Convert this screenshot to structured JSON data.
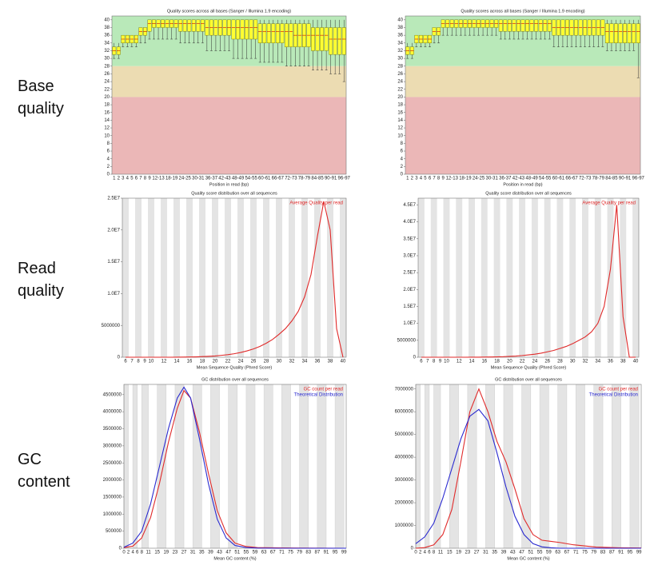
{
  "row_labels": [
    "Base quality",
    "Read quality",
    "GC content"
  ],
  "chart_data": [
    {
      "type": "box",
      "title": "Quality scores across all bases (Sanger / Illumina 1.9 encoding)",
      "x_label": "Position in read (bp)",
      "categories": [
        "1",
        "2",
        "3",
        "4",
        "5",
        "6",
        "7",
        "8",
        "9",
        null,
        "12-13",
        null,
        null,
        "18-19",
        null,
        null,
        "24-25",
        null,
        null,
        "30-31",
        null,
        null,
        "36-37",
        null,
        null,
        "42-43",
        null,
        null,
        "48-49",
        null,
        null,
        "54-55",
        null,
        null,
        "60-61",
        null,
        null,
        "66-67",
        null,
        null,
        "72-73",
        null,
        null,
        "78-79",
        null,
        null,
        "84-85",
        null,
        null,
        "90-91",
        null,
        null,
        "96-97"
      ],
      "lower": [
        30,
        30,
        33,
        33,
        33,
        33,
        34,
        34,
        35,
        35,
        35,
        35,
        35,
        35,
        35,
        34,
        34,
        34,
        34,
        34,
        34,
        32,
        32,
        32,
        32,
        32,
        32,
        30,
        30,
        30,
        30,
        30,
        30,
        29,
        29,
        29,
        29,
        29,
        29,
        28,
        28,
        28,
        28,
        28,
        28,
        27,
        27,
        27,
        27,
        26,
        26,
        26,
        24
      ],
      "q1": [
        31,
        31,
        34,
        34,
        34,
        34,
        36,
        36,
        37,
        38,
        38,
        38,
        38,
        38,
        38,
        37,
        37,
        37,
        37,
        37,
        37,
        36,
        36,
        36,
        36,
        36,
        36,
        35,
        35,
        35,
        35,
        35,
        35,
        34,
        34,
        34,
        34,
        34,
        34,
        33,
        33,
        33,
        33,
        33,
        33,
        32,
        32,
        32,
        32,
        31,
        31,
        31,
        31
      ],
      "median": [
        32,
        32,
        35,
        35,
        35,
        35,
        37,
        37,
        39,
        39,
        39,
        39,
        39,
        39,
        39,
        39,
        39,
        39,
        39,
        39,
        39,
        38,
        38,
        38,
        38,
        38,
        38,
        38,
        38,
        38,
        38,
        38,
        38,
        37,
        37,
        37,
        37,
        37,
        37,
        37,
        37,
        36,
        36,
        36,
        36,
        36,
        36,
        36,
        36,
        35,
        35,
        35,
        35
      ],
      "q3": [
        33,
        33,
        36,
        36,
        36,
        36,
        38,
        38,
        40,
        40,
        40,
        40,
        40,
        40,
        40,
        40,
        40,
        40,
        40,
        40,
        40,
        40,
        40,
        40,
        40,
        40,
        40,
        40,
        40,
        40,
        40,
        40,
        40,
        39,
        39,
        39,
        39,
        39,
        39,
        39,
        39,
        39,
        39,
        39,
        39,
        38,
        38,
        38,
        38,
        38,
        38,
        38,
        38
      ],
      "upper": [
        34,
        34,
        36,
        36,
        36,
        36,
        38,
        38,
        40,
        40,
        40,
        40,
        40,
        40,
        40,
        40,
        40,
        40,
        40,
        40,
        40,
        40,
        40,
        40,
        40,
        40,
        40,
        40,
        40,
        40,
        40,
        40,
        40,
        40,
        40,
        40,
        40,
        40,
        40,
        40,
        40,
        40,
        40,
        40,
        40,
        40,
        40,
        40,
        40,
        40,
        40,
        40,
        40
      ],
      "color": "#ffff33",
      "bands": [
        {
          "from": 28,
          "to": 41,
          "color": "#b9e9b9"
        },
        {
          "from": 20,
          "to": 28,
          "color": "#ecdcb2"
        },
        {
          "from": 0,
          "to": 20,
          "color": "#ebb7b7"
        }
      ],
      "ylim": [
        0,
        41
      ],
      "yticks": [
        0,
        2,
        4,
        6,
        8,
        10,
        12,
        14,
        16,
        18,
        20,
        22,
        24,
        26,
        28,
        30,
        32,
        34,
        36,
        38,
        40
      ]
    },
    {
      "type": "box",
      "title": "Quality scores across all bases (Sanger / Illumina 1.9 encoding)",
      "x_label": "Position in read (bp)",
      "categories": [
        "1",
        "2",
        "3",
        "4",
        "5",
        "6",
        "7",
        "8",
        "9",
        null,
        "12-13",
        null,
        null,
        "18-19",
        null,
        null,
        "24-25",
        null,
        null,
        "30-31",
        null,
        null,
        "36-37",
        null,
        null,
        "42-43",
        null,
        null,
        "48-49",
        null,
        null,
        "54-55",
        null,
        null,
        "60-61",
        null,
        null,
        "66-67",
        null,
        null,
        "72-73",
        null,
        null,
        "78-79",
        null,
        null,
        "84-85",
        null,
        null,
        "90-91",
        null,
        null,
        "96-97"
      ],
      "lower": [
        30,
        30,
        33,
        33,
        33,
        33,
        34,
        34,
        36,
        36,
        36,
        36,
        36,
        36,
        36,
        36,
        36,
        36,
        36,
        36,
        36,
        35,
        35,
        35,
        35,
        35,
        35,
        35,
        35,
        35,
        35,
        35,
        35,
        33,
        33,
        33,
        33,
        33,
        33,
        33,
        33,
        33,
        33,
        33,
        33,
        32,
        32,
        32,
        32,
        32,
        32,
        32,
        25
      ],
      "q1": [
        31,
        31,
        34,
        34,
        34,
        34,
        36,
        36,
        38,
        38,
        38,
        38,
        38,
        38,
        38,
        38,
        38,
        38,
        38,
        38,
        38,
        37,
        37,
        37,
        37,
        37,
        37,
        37,
        37,
        37,
        37,
        37,
        37,
        36,
        36,
        36,
        36,
        36,
        36,
        36,
        36,
        36,
        36,
        36,
        36,
        34,
        34,
        34,
        34,
        34,
        34,
        34,
        34
      ],
      "median": [
        32,
        32,
        35,
        35,
        35,
        35,
        37,
        37,
        39,
        39,
        39,
        39,
        39,
        39,
        39,
        39,
        39,
        39,
        39,
        39,
        39,
        39,
        39,
        39,
        39,
        39,
        39,
        39,
        39,
        39,
        39,
        39,
        39,
        38,
        38,
        38,
        38,
        38,
        38,
        38,
        38,
        38,
        38,
        38,
        38,
        37,
        37,
        37,
        37,
        37,
        37,
        37,
        37
      ],
      "q3": [
        33,
        33,
        36,
        36,
        36,
        36,
        38,
        38,
        40,
        40,
        40,
        40,
        40,
        40,
        40,
        40,
        40,
        40,
        40,
        40,
        40,
        40,
        40,
        40,
        40,
        40,
        40,
        40,
        40,
        40,
        40,
        40,
        40,
        40,
        40,
        40,
        40,
        40,
        40,
        40,
        40,
        40,
        40,
        40,
        40,
        39,
        39,
        39,
        39,
        39,
        39,
        39,
        39
      ],
      "upper": [
        34,
        34,
        36,
        36,
        36,
        36,
        38,
        38,
        40,
        40,
        40,
        40,
        40,
        40,
        40,
        40,
        40,
        40,
        40,
        40,
        40,
        40,
        40,
        40,
        40,
        40,
        40,
        40,
        40,
        40,
        40,
        40,
        40,
        40,
        40,
        40,
        40,
        40,
        40,
        40,
        40,
        40,
        40,
        40,
        40,
        40,
        40,
        40,
        40,
        40,
        40,
        40,
        40
      ],
      "color": "#ffff33",
      "bands": [
        {
          "from": 28,
          "to": 41,
          "color": "#b9e9b9"
        },
        {
          "from": 20,
          "to": 28,
          "color": "#ecdcb2"
        },
        {
          "from": 0,
          "to": 20,
          "color": "#ebb7b7"
        }
      ],
      "ylim": [
        0,
        41
      ],
      "yticks": [
        0,
        2,
        4,
        6,
        8,
        10,
        12,
        14,
        16,
        18,
        20,
        22,
        24,
        26,
        28,
        30,
        32,
        34,
        36,
        38,
        40
      ]
    },
    {
      "type": "line",
      "title": "Quality score distribution over all sequences",
      "x_label": "Mean Sequence Quality (Phred Score)",
      "categories": [
        "6",
        "7",
        "8",
        "9",
        "10",
        null,
        "12",
        null,
        "14",
        null,
        "16",
        null,
        "18",
        null,
        "20",
        null,
        "22",
        null,
        "24",
        null,
        "26",
        null,
        "28",
        null,
        "30",
        null,
        "32",
        null,
        "34",
        null,
        "36",
        null,
        "38",
        null,
        "40"
      ],
      "series": [
        {
          "name": "Average Quality per read",
          "color": "#e02a2a",
          "values": [
            0,
            0,
            0,
            0,
            0,
            0,
            0,
            0,
            10000,
            20000,
            40000,
            60000,
            100000,
            150000,
            200000,
            300000,
            400000,
            550000,
            750000,
            1000000,
            1300000,
            1700000,
            2200000,
            2800000,
            3600000,
            4500000,
            5700000,
            7200000,
            9500000,
            13000000,
            19000000,
            24500000,
            20000000,
            4500000,
            0
          ]
        }
      ],
      "stripes": true,
      "ylim": [
        0,
        25000000
      ],
      "yticks": [
        0,
        5000000,
        {
          "value": 10000000,
          "label": "1.0E7"
        },
        {
          "value": 15000000,
          "label": "1.5E7"
        },
        {
          "value": 20000000,
          "label": "2.0E7"
        },
        {
          "value": 25000000,
          "label": "2.5E7"
        }
      ]
    },
    {
      "type": "line",
      "title": "Quality score distribution over all sequences",
      "x_label": "Mean Sequence Quality (Phred Score)",
      "categories": [
        "6",
        "7",
        "8",
        "9",
        "10",
        null,
        "12",
        null,
        "14",
        null,
        "16",
        null,
        "18",
        null,
        "20",
        null,
        "22",
        null,
        "24",
        null,
        "26",
        null,
        "28",
        null,
        "30",
        null,
        "32",
        null,
        "34",
        null,
        "36",
        null,
        "38",
        null,
        "40"
      ],
      "series": [
        {
          "name": "Average Quality per read",
          "color": "#e02a2a",
          "values": [
            0,
            0,
            0,
            0,
            0,
            0,
            0,
            0,
            10000,
            20000,
            40000,
            70000,
            100000,
            150000,
            250000,
            350000,
            500000,
            700000,
            900000,
            1200000,
            1600000,
            2000000,
            2600000,
            3200000,
            4000000,
            5000000,
            6000000,
            7500000,
            10000000,
            15000000,
            26000000,
            45000000,
            12000000,
            0,
            0
          ]
        }
      ],
      "stripes": true,
      "ylim": [
        0,
        47000000
      ],
      "yticks": [
        0,
        5000000,
        {
          "value": 10000000,
          "label": "1.0E7"
        },
        {
          "value": 15000000,
          "label": "1.5E7"
        },
        {
          "value": 20000000,
          "label": "2.0E7"
        },
        {
          "value": 25000000,
          "label": "2.5E7"
        },
        {
          "value": 30000000,
          "label": "3.0E7"
        },
        {
          "value": 35000000,
          "label": "3.5E7"
        },
        {
          "value": 40000000,
          "label": "4.0E7"
        },
        {
          "value": 45000000,
          "label": "4.5E7"
        }
      ]
    },
    {
      "type": "line",
      "title": "GC distribution over all sequences",
      "x_label": "Mean GC content (%)",
      "x": [
        0,
        4,
        8,
        12,
        16,
        20,
        24,
        27,
        30,
        34,
        38,
        42,
        46,
        50,
        55,
        60,
        70,
        80,
        100
      ],
      "series": [
        {
          "name": "GC count per read",
          "color": "#e02a2a",
          "values": [
            20000,
            60000,
            300000,
            900000,
            1900000,
            3100000,
            4100000,
            4620000,
            4400000,
            3400000,
            2200000,
            1100000,
            450000,
            150000,
            50000,
            20000,
            10000,
            5000,
            0
          ]
        },
        {
          "name": "Theoretical Distribution",
          "color": "#2a2ad0",
          "values": [
            30000,
            150000,
            500000,
            1300000,
            2400000,
            3500000,
            4400000,
            4720000,
            4400000,
            3200000,
            1900000,
            850000,
            300000,
            80000,
            20000,
            5000,
            0,
            0,
            0
          ]
        }
      ],
      "stripes": true,
      "xlim": [
        0,
        100
      ],
      "xticks": [
        0,
        2,
        4,
        6,
        8,
        11,
        15,
        19,
        23,
        27,
        31,
        35,
        39,
        43,
        47,
        51,
        55,
        59,
        63,
        67,
        71,
        75,
        79,
        83,
        87,
        91,
        95,
        99
      ],
      "ylim": [
        0,
        4800000
      ],
      "yticks": [
        0,
        500000,
        1000000,
        1500000,
        2000000,
        2500000,
        3000000,
        3500000,
        4000000,
        4500000
      ]
    },
    {
      "type": "line",
      "title": "GC distribution over all sequences",
      "x_label": "Mean GC content (%)",
      "x": [
        0,
        4,
        8,
        12,
        16,
        20,
        24,
        28,
        32,
        36,
        40,
        44,
        48,
        52,
        56,
        60,
        64,
        70,
        80,
        90,
        100
      ],
      "series": [
        {
          "name": "GC count per read",
          "color": "#e02a2a",
          "values": [
            0,
            30000,
            150000,
            600000,
            1700000,
            3800000,
            6000000,
            7000000,
            6000000,
            4700000,
            3800000,
            2600000,
            1300000,
            600000,
            350000,
            300000,
            250000,
            150000,
            50000,
            20000,
            10000
          ]
        },
        {
          "name": "Theoretical Distribution",
          "color": "#2a2ad0",
          "values": [
            200000,
            500000,
            1100000,
            2200000,
            3500000,
            4800000,
            5800000,
            6100000,
            5600000,
            4200000,
            2700000,
            1400000,
            600000,
            200000,
            60000,
            20000,
            0,
            0,
            0,
            0,
            0
          ]
        }
      ],
      "stripes": true,
      "xlim": [
        0,
        100
      ],
      "xticks": [
        0,
        2,
        4,
        6,
        8,
        11,
        15,
        19,
        23,
        27,
        31,
        35,
        39,
        43,
        47,
        51,
        55,
        59,
        63,
        67,
        71,
        75,
        79,
        83,
        87,
        91,
        95,
        99
      ],
      "ylim": [
        0,
        7200000
      ],
      "yticks": [
        0,
        1000000,
        2000000,
        3000000,
        4000000,
        5000000,
        6000000,
        7000000
      ]
    }
  ]
}
